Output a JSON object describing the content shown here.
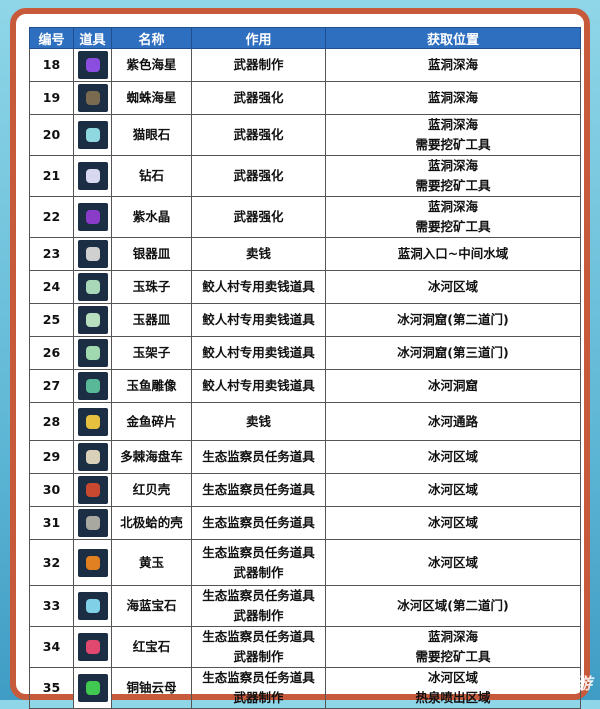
{
  "headers": [
    "编号",
    "道具",
    "名称",
    "作用",
    "获取位置"
  ],
  "rows": [
    {
      "id": "18",
      "icon": "purple-starfish-icon",
      "color": "#8a4de0",
      "name": "紫色海星",
      "use": [
        "武器制作"
      ],
      "loc": [
        "蓝洞深海"
      ],
      "h": 31
    },
    {
      "id": "19",
      "icon": "spider-starfish-icon",
      "color": "#7a6a50",
      "name": "蜘蛛海星",
      "use": [
        "武器强化"
      ],
      "loc": [
        "蓝洞深海"
      ],
      "h": 32
    },
    {
      "id": "20",
      "icon": "cat-eye-stone-icon",
      "color": "#8fd8e0",
      "name": "猫眼石",
      "use": [
        "武器强化"
      ],
      "loc": [
        "蓝洞深海",
        "需要挖矿工具"
      ],
      "h": 40
    },
    {
      "id": "21",
      "icon": "diamond-icon",
      "color": "#d8d8f0",
      "name": "钻石",
      "use": [
        "武器强化"
      ],
      "loc": [
        "蓝洞深海",
        "需要挖矿工具"
      ],
      "h": 40
    },
    {
      "id": "22",
      "icon": "amethyst-icon",
      "color": "#8a3cc8",
      "name": "紫水晶",
      "use": [
        "武器强化"
      ],
      "loc": [
        "蓝洞深海",
        "需要挖矿工具"
      ],
      "h": 40
    },
    {
      "id": "23",
      "icon": "silver-plate-icon",
      "color": "#d0d0d0",
      "name": "银器皿",
      "use": [
        "卖钱"
      ],
      "loc": [
        "蓝洞入口~中间水域"
      ],
      "h": 27
    },
    {
      "id": "24",
      "icon": "jade-bead-icon",
      "color": "#a8d8b8",
      "name": "玉珠子",
      "use": [
        "鲛人村专用卖钱道具"
      ],
      "loc": [
        "冰河区域"
      ],
      "h": 29
    },
    {
      "id": "25",
      "icon": "jade-plate-icon",
      "color": "#b8e0c0",
      "name": "玉器皿",
      "use": [
        "鲛人村专用卖钱道具"
      ],
      "loc": [
        "冰河洞窟(第二道门)"
      ],
      "h": 29
    },
    {
      "id": "26",
      "icon": "jade-stand-icon",
      "color": "#a0d8b0",
      "name": "玉架子",
      "use": [
        "鲛人村专用卖钱道具"
      ],
      "loc": [
        "冰河洞窟(第三道门)"
      ],
      "h": 33
    },
    {
      "id": "27",
      "icon": "jade-fish-statue-icon",
      "color": "#58b898",
      "name": "玉鱼雕像",
      "use": [
        "鲛人村专用卖钱道具"
      ],
      "loc": [
        "冰河洞窟"
      ],
      "h": 32
    },
    {
      "id": "28",
      "icon": "goldfish-shard-icon",
      "color": "#e8c040",
      "name": "金鱼碎片",
      "use": [
        "卖钱"
      ],
      "loc": [
        "冰河通路"
      ],
      "h": 38
    },
    {
      "id": "29",
      "icon": "sand-dollar-icon",
      "color": "#d8d0b8",
      "name": "多棘海盘车",
      "use": [
        "生态监察员任务道具"
      ],
      "loc": [
        "冰河区域"
      ],
      "h": 30
    },
    {
      "id": "30",
      "icon": "red-shell-icon",
      "color": "#c84830",
      "name": "红贝壳",
      "use": [
        "生态监察员任务道具"
      ],
      "loc": [
        "冰河区域"
      ],
      "h": 32
    },
    {
      "id": "31",
      "icon": "arctic-clam-shell-icon",
      "color": "#a8a8a0",
      "name": "北极蛤的壳",
      "use": [
        "生态监察员任务道具"
      ],
      "loc": [
        "冰河区域"
      ],
      "h": 30
    },
    {
      "id": "32",
      "icon": "topaz-icon",
      "color": "#e08020",
      "name": "黄玉",
      "use": [
        "生态监察员任务道具",
        "武器制作"
      ],
      "loc": [
        "冰河区域"
      ],
      "h": 46
    },
    {
      "id": "33",
      "icon": "aquamarine-icon",
      "color": "#80d0e8",
      "name": "海蓝宝石",
      "use": [
        "生态监察员任务道具",
        "武器制作"
      ],
      "loc": [
        "冰河区域(第二道门)"
      ],
      "h": 41
    },
    {
      "id": "34",
      "icon": "ruby-icon",
      "color": "#e04870",
      "name": "红宝石",
      "use": [
        "生态监察员任务道具",
        "武器制作"
      ],
      "loc": [
        "蓝洞深海",
        "需要挖矿工具"
      ],
      "h": 41
    },
    {
      "id": "35",
      "icon": "fuchsite-icon",
      "color": "#40c850",
      "name": "铜铀云母",
      "use": [
        "生态监察员任务道具",
        "武器制作"
      ],
      "loc": [
        "冰河区域",
        "热泉喷出区域"
      ],
      "h": 40
    }
  ],
  "watermark": "九游"
}
